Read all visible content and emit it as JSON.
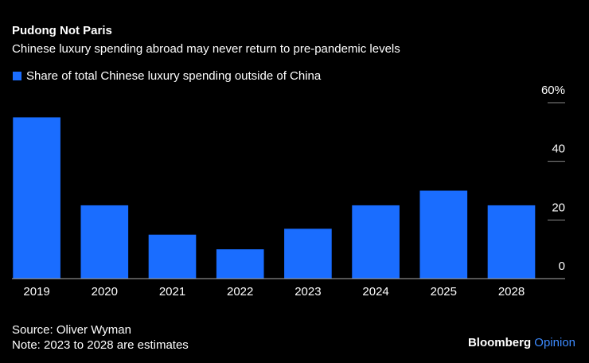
{
  "chart_data": {
    "type": "bar",
    "title": "Pudong Not Paris",
    "subtitle": "Chinese luxury spending abroad may never return to pre-pandemic levels",
    "categories": [
      "2019",
      "2020",
      "2021",
      "2022",
      "2023",
      "2024",
      "2025",
      "2028"
    ],
    "series": [
      {
        "name": "Share of total Chinese luxury spending outside of China",
        "color": "#1a6dff",
        "values": [
          55,
          25,
          15,
          10,
          17,
          25,
          30,
          25
        ]
      }
    ],
    "ylim": [
      0,
      60
    ],
    "yticks": [
      0,
      20,
      40,
      {
        "value": 60,
        "label": "60%"
      }
    ],
    "source": "Source: Oliver Wyman",
    "note": "Note: 2023 to 2028 are estimates",
    "brand": {
      "name": "Bloomberg",
      "section": "Opinion"
    }
  }
}
